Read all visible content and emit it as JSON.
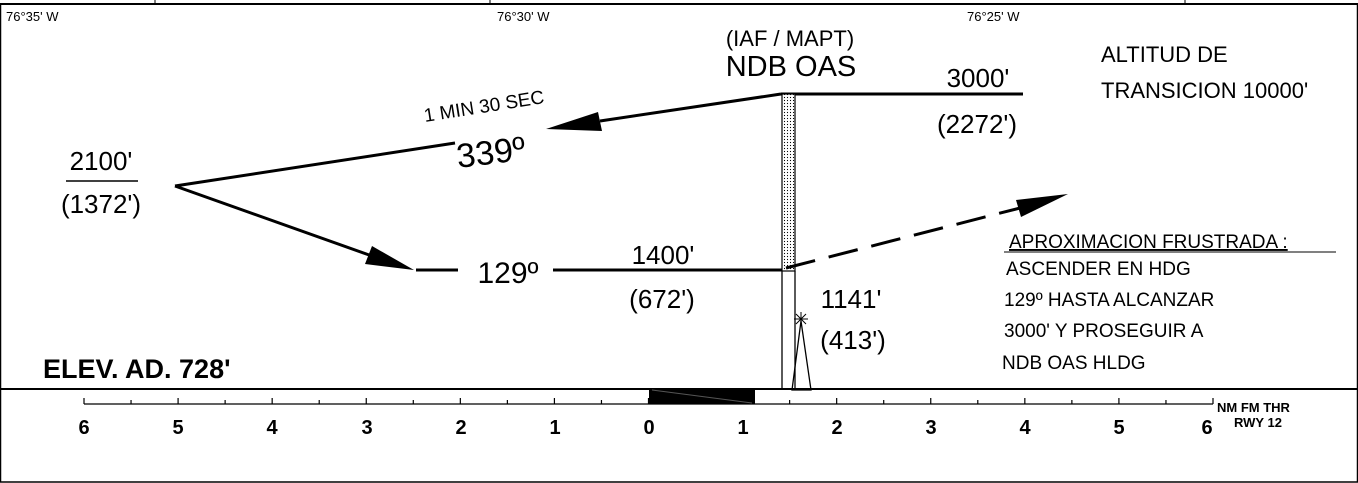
{
  "longitudes": [
    "76°35' W",
    "76°30' W",
    "76°25' W"
  ],
  "fix": {
    "role": "(IAF / MAPT)",
    "name": "NDB OAS"
  },
  "transition_altitude": [
    "ALTITUD DE",
    "TRANSICION 10000'"
  ],
  "initial_altitude": {
    "msl": "3000'",
    "height": "(2272')"
  },
  "outbound": {
    "timing": "1 MIN 30 SEC",
    "course": "339º"
  },
  "turn_altitude": {
    "msl": "2100'",
    "height": "(1372')"
  },
  "inbound": {
    "course": "129º",
    "msl": "1400'",
    "height": "(672')"
  },
  "obstacle": {
    "msl": "1141'",
    "height": "(413')"
  },
  "missed_approach": {
    "title": "APROXIMACION FRUSTRADA :",
    "lines": [
      "ASCENDER EN HDG",
      "129º HASTA ALCANZAR",
      "3000' Y PROSEGUIR A",
      "NDB OAS HLDG"
    ]
  },
  "aerodrome_elevation": "ELEV. AD. 728'",
  "distance_scale": {
    "labels": [
      "6",
      "5",
      "4",
      "3",
      "2",
      "1",
      "0",
      "1",
      "2",
      "3",
      "4",
      "5",
      "6"
    ],
    "unit": [
      "NM FM THR",
      "RWY 12"
    ]
  }
}
